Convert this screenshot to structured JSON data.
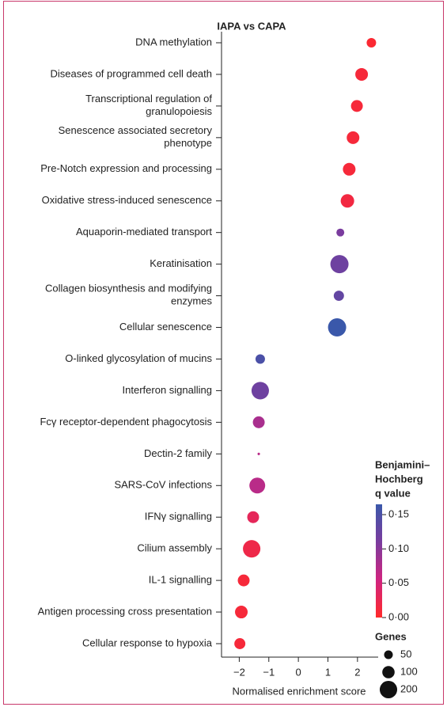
{
  "chart_data": {
    "type": "dot",
    "title": "IAPA vs CAPA",
    "x_label": "Normalised enrichment score",
    "categories": [
      "DNA methylation",
      "Diseases of programmed cell death",
      "Transcriptional regulation of\ngranulopoiesis",
      "Senescence associated secretory\nphenotype",
      "Pre-Notch expression and processing",
      "Oxidative stress-induced senescence",
      "Aquaporin-mediated transport",
      "Keratinisation",
      "Collagen biosynthesis and modifying\nenzymes",
      "Cellular senescence",
      "O-linked glycosylation of mucins",
      "Interferon signalling",
      "Fcγ receptor-dependent phagocytosis",
      "Dectin-2 family",
      "SARS-CoV infections",
      "IFNγ signalling",
      "Cilium assembly",
      "IL-1 signalling",
      "Antigen processing cross presentation",
      "Cellular response to hypoxia"
    ],
    "series": [
      {
        "values": [
          2.47,
          2.14,
          1.98,
          1.85,
          1.72,
          1.66,
          1.42,
          1.39,
          1.37,
          1.31,
          -1.29,
          -1.29,
          -1.34,
          -1.34,
          -1.39,
          -1.53,
          -1.58,
          -1.85,
          -1.93,
          -1.98
        ],
        "genes": [
          59,
          105,
          92,
          105,
          105,
          119,
          41,
          217,
          69,
          217,
          59,
          200,
          92,
          4,
          164,
          92,
          200,
          92,
          105,
          80
        ],
        "q_values": [
          0.005,
          0.01,
          0.01,
          0.01,
          0.01,
          0.015,
          0.11,
          0.12,
          0.13,
          0.17,
          0.15,
          0.12,
          0.08,
          0.07,
          0.07,
          0.03,
          0.02,
          0.01,
          0.01,
          0.01
        ]
      }
    ],
    "xlim": [
      -2.6,
      2.7
    ],
    "xticks": [
      {
        "value": -2,
        "label": "−2"
      },
      {
        "value": -1,
        "label": "−1"
      },
      0,
      1,
      2
    ],
    "colorbar_title": [
      "Benjamini–",
      "Hochberg",
      "q value"
    ],
    "clim": [
      0,
      0.165
    ],
    "cticks": [
      {
        "value": 0,
        "label": "0·00"
      },
      {
        "value": 0.05,
        "label": "0·05"
      },
      {
        "value": 0.1,
        "label": "0·10"
      },
      {
        "value": 0.15,
        "label": "0·15"
      }
    ],
    "colorscale": [
      "#ff2a2a",
      "#d02480",
      "#7a3c9e",
      "#3a58aa"
    ],
    "size_title": "Genes",
    "size_legend": [
      50,
      100,
      200
    ],
    "frame_color": "#c8386a"
  }
}
